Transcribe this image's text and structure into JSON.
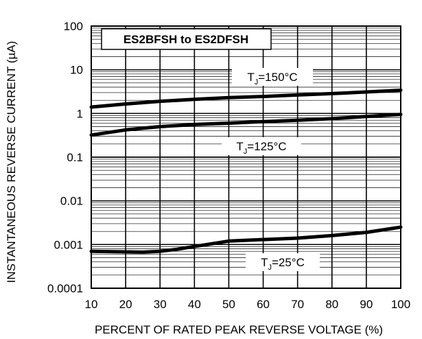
{
  "chart_data": {
    "type": "line",
    "title": "ES2BFSH to ES2DFSH",
    "xlabel": "PERCENT OF RATED PEAK REVERSE VOLTAGE (%)",
    "ylabel": "INSTANTANEOUS REVERSE CURRENT (µA)",
    "xlim": [
      10,
      100
    ],
    "ylim": [
      0.0001,
      100
    ],
    "yscale": "log",
    "grid": true,
    "x_ticks": [
      10,
      20,
      30,
      40,
      50,
      60,
      70,
      80,
      90,
      100
    ],
    "x_tick_labels": [
      "10",
      "20",
      "30",
      "40",
      "50",
      "60",
      "70",
      "80",
      "90",
      "100"
    ],
    "y_ticks": [
      0.0001,
      0.001,
      0.01,
      0.1,
      1,
      10,
      100
    ],
    "y_tick_labels": [
      "0.0001",
      "0.001",
      "0.01",
      "0.1",
      "1",
      "10",
      "100"
    ],
    "series": [
      {
        "name": "TJ=150°C",
        "label_main": "T",
        "label_sub": "J",
        "label_rest": "=150°C",
        "x": [
          10,
          20,
          30,
          40,
          50,
          60,
          70,
          80,
          90,
          100
        ],
        "values": [
          1.4,
          1.65,
          1.9,
          2.1,
          2.3,
          2.45,
          2.65,
          2.85,
          3.1,
          3.4
        ]
      },
      {
        "name": "TJ=125°C",
        "label_main": "T",
        "label_sub": "J",
        "label_rest": "=125°C",
        "x": [
          10,
          20,
          30,
          40,
          50,
          60,
          70,
          80,
          90,
          100
        ],
        "values": [
          0.32,
          0.42,
          0.5,
          0.56,
          0.6,
          0.65,
          0.7,
          0.76,
          0.85,
          0.95
        ]
      },
      {
        "name": "TJ=25°C",
        "label_main": "T",
        "label_sub": "J",
        "label_rest": "=25°C",
        "x": [
          10,
          20,
          25,
          30,
          35,
          40,
          50,
          60,
          70,
          80,
          90,
          100
        ],
        "values": [
          0.0007,
          0.00068,
          0.00067,
          0.0007,
          0.00078,
          0.0009,
          0.0012,
          0.0013,
          0.0014,
          0.0016,
          0.0019,
          0.0025
        ]
      }
    ]
  }
}
